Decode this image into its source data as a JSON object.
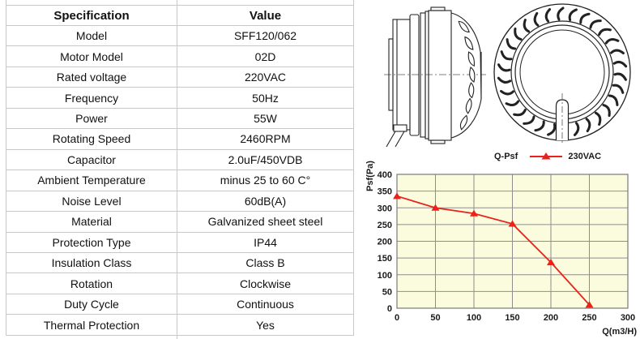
{
  "table": {
    "headers": {
      "spec": "Specification",
      "value": "Value"
    },
    "rows": [
      {
        "label": "Model",
        "value": "SFF120/062"
      },
      {
        "label": "Motor Model",
        "value": "02D"
      },
      {
        "label": "Rated voltage",
        "value": "220VAC"
      },
      {
        "label": "Frequency",
        "value": "50Hz"
      },
      {
        "label": "Power",
        "value": "55W"
      },
      {
        "label": "Rotating Speed",
        "value": "2460RPM"
      },
      {
        "label": "Capacitor",
        "value": "2.0uF/450VDB"
      },
      {
        "label": "Ambient Temperature",
        "value": "minus 25 to 60 C°"
      },
      {
        "label": "Noise Level",
        "value": "60dB(A)"
      },
      {
        "label": "Material",
        "value": "Galvanized sheet steel"
      },
      {
        "label": "Protection Type",
        "value": "IP44"
      },
      {
        "label": "Insulation Class",
        "value": "Class B"
      },
      {
        "label": "Rotation",
        "value": "Clockwise"
      },
      {
        "label": "Duty Cycle",
        "value": "Continuous"
      },
      {
        "label": "Thermal Protection",
        "value": "Yes"
      }
    ]
  },
  "drawings": {
    "side_view_icon": "fan-side-view",
    "front_view_icon": "fan-front-view"
  },
  "chart_data": {
    "type": "line",
    "title": "Q-Psf",
    "xlabel": "Q(m3/H)",
    "ylabel": "Psf(Pa)",
    "x": [
      0,
      50,
      100,
      150,
      200,
      250
    ],
    "series": [
      {
        "name": "230VAC",
        "values": [
          335,
          300,
          283,
          252,
          137,
          10
        ]
      }
    ],
    "xlim": [
      0,
      300
    ],
    "ylim": [
      0,
      400
    ],
    "x_ticks": [
      0,
      50,
      100,
      150,
      200,
      250,
      300
    ],
    "y_ticks": [
      0,
      50,
      100,
      150,
      200,
      250,
      300,
      350,
      400
    ],
    "grid": true,
    "legend_position": "top",
    "colors": {
      "line": "#e8231c",
      "plot_bg": "#fbfbdd",
      "grid": "#8e8e8e",
      "border": "#7a7a7a"
    }
  }
}
